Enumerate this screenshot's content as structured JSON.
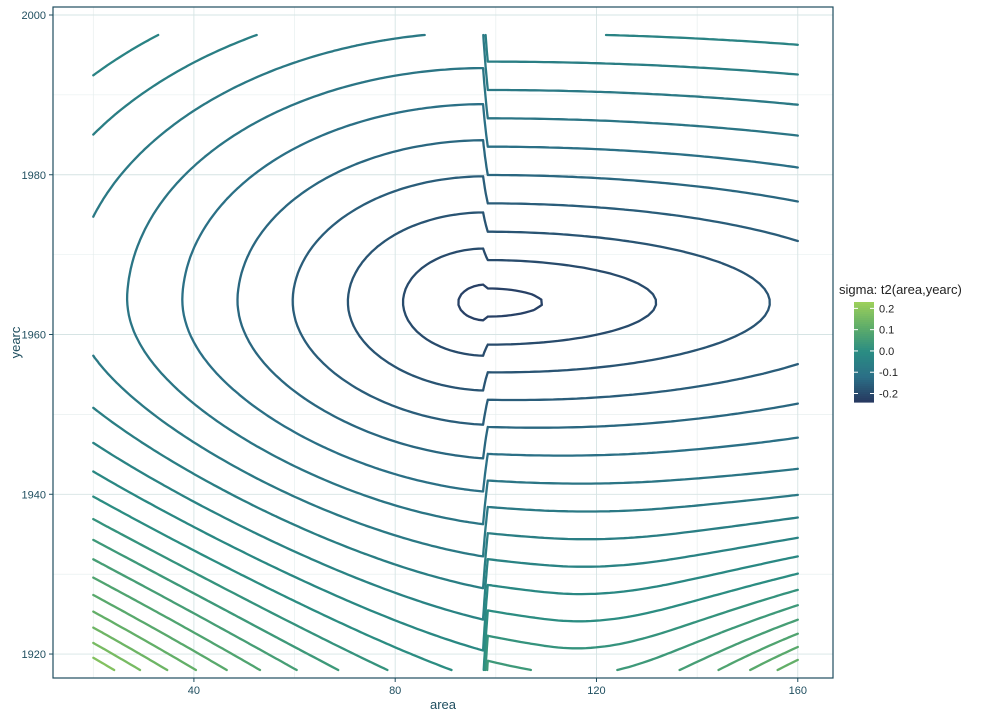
{
  "chart_data": {
    "type": "contour",
    "xlabel": "area",
    "ylabel": "yearc",
    "xlim": [
      12,
      167
    ],
    "ylim": [
      1917,
      2001
    ],
    "x_ticks": [
      40,
      80,
      120,
      160
    ],
    "y_ticks": [
      1920,
      1940,
      1960,
      1980,
      2000
    ],
    "grid": true,
    "legend": {
      "title": "sigma: t2(area,yearc)",
      "placement": "right",
      "breaks": [
        0.2,
        0.1,
        0.0,
        -0.1,
        -0.2
      ],
      "labels": [
        "0.2",
        "0.1",
        "0.0",
        "-0.1",
        "-0.2"
      ],
      "range": [
        -0.24,
        0.23
      ],
      "colors": [
        "#27385f",
        "#2b6f86",
        "#2a8c83",
        "#5fad69",
        "#9dd05a"
      ]
    },
    "field": {
      "center": {
        "area": 98,
        "yearc": 1964
      },
      "center_value": -0.23,
      "level_step": 0.02
    }
  }
}
